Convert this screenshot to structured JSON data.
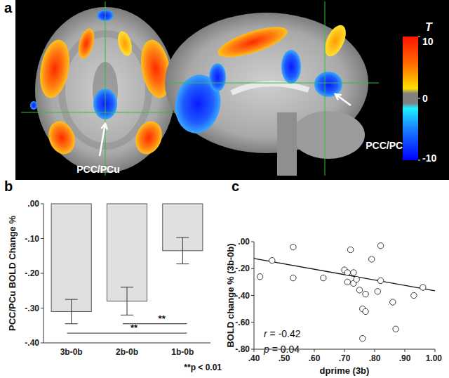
{
  "brain_map": {
    "panel": "a",
    "labels": [
      "PCC/PCu",
      "PCC/PCu"
    ],
    "colorbar": {
      "title": "T",
      "lim": [
        -10,
        10
      ],
      "ticks": [
        10,
        0,
        -10
      ]
    }
  },
  "chart_data": [
    {
      "panel": "b",
      "type": "bar",
      "categories": [
        "3b-0b",
        "2b-0b",
        "1b-0b"
      ],
      "values": [
        -0.31,
        -0.28,
        -0.135
      ],
      "errors": [
        0.035,
        0.04,
        0.038
      ],
      "color": "#e0e0e0",
      "ylabel": "PCC/PCu BOLD Change %",
      "ylim": [
        -0.4,
        0
      ],
      "yticks": [
        {
          "value": -0.4,
          "label": "-.40"
        },
        {
          "value": -0.3,
          "label": "-.30"
        },
        {
          "value": -0.2,
          "label": "-.20"
        },
        {
          "value": -0.1,
          "label": "-.10"
        },
        {
          "value": 0,
          "label": ".00"
        }
      ],
      "annotations": [
        {
          "text": "**",
          "from": 0,
          "to": 2,
          "y": -0.372
        },
        {
          "text": "**",
          "from": 1,
          "to": 2,
          "y": -0.345
        }
      ],
      "footnote": "**p < 0.01"
    },
    {
      "panel": "c",
      "type": "scatter",
      "marker": "circle",
      "x": [
        0.42,
        0.46,
        0.53,
        0.53,
        0.63,
        0.7,
        0.71,
        0.71,
        0.72,
        0.73,
        0.73,
        0.74,
        0.75,
        0.76,
        0.76,
        0.77,
        0.77,
        0.79,
        0.81,
        0.82,
        0.82,
        0.86,
        0.87,
        0.93,
        0.96
      ],
      "values": [
        -0.26,
        -0.14,
        -0.04,
        -0.27,
        -0.27,
        -0.21,
        -0.3,
        -0.23,
        -0.06,
        -0.23,
        -0.31,
        -0.28,
        -0.36,
        -0.5,
        -0.72,
        -0.52,
        -0.39,
        -0.13,
        -0.37,
        -0.29,
        -0.03,
        -0.45,
        -0.65,
        -0.4,
        -0.34
      ],
      "fit": {
        "x": [
          0.4,
          1.0
        ],
        "values": [
          -0.125,
          -0.365
        ]
      },
      "xlabel": "dprime (3b)",
      "ylabel": "BOLD change % (3b-0b)",
      "xlim": [
        0.4,
        1.0
      ],
      "ylim": [
        -0.8,
        0
      ],
      "xticks": [
        {
          "value": 0.4,
          "label": ".40"
        },
        {
          "value": 0.5,
          "label": ".50"
        },
        {
          "value": 0.6,
          "label": ".60"
        },
        {
          "value": 0.7,
          "label": ".70"
        },
        {
          "value": 0.8,
          "label": ".80"
        },
        {
          "value": 0.9,
          "label": ".90"
        },
        {
          "value": 1.0,
          "label": "1.00"
        }
      ],
      "yticks": [
        {
          "value": -0.8,
          "label": "-.80"
        },
        {
          "value": -0.6,
          "label": "-.60"
        },
        {
          "value": -0.4,
          "label": "-.40"
        },
        {
          "value": -0.2,
          "label": "-.20"
        },
        {
          "value": 0,
          "label": ".00"
        }
      ],
      "annotations": [
        "r = -0.42",
        "p = 0.04"
      ]
    }
  ]
}
